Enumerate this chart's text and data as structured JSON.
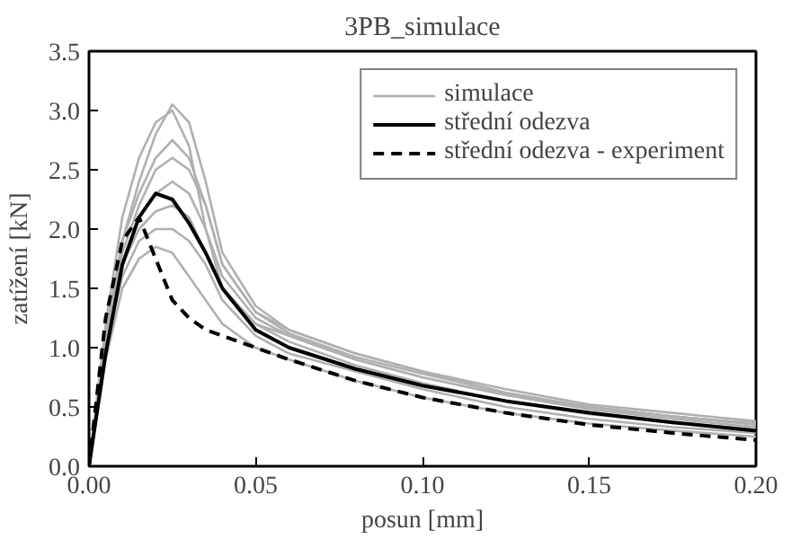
{
  "chart_data": {
    "type": "line",
    "title": "3PB_simulace",
    "xlabel": "posun [mm]",
    "ylabel": "zatížení [kN]",
    "x": [
      0,
      0.005,
      0.01,
      0.015,
      0.02,
      0.025,
      0.03,
      0.035,
      0.04,
      0.05,
      0.06,
      0.08,
      0.1,
      0.125,
      0.15,
      0.175,
      0.2
    ],
    "xlim": [
      0,
      0.2
    ],
    "xticks": [
      {
        "value": 0,
        "label": "0.00"
      },
      0.05,
      {
        "value": 0.1,
        "label": "0.10"
      },
      0.15,
      {
        "value": 0.2,
        "label": "0.20"
      }
    ],
    "ylim": [
      0,
      3.5
    ],
    "yticks": [
      {
        "value": 0,
        "label": "0.0"
      },
      0.5,
      {
        "value": 1,
        "label": "1.0"
      },
      1.5,
      {
        "value": 2,
        "label": "2.0"
      },
      2.5,
      {
        "value": 3,
        "label": "3.0"
      },
      3.5
    ],
    "grid": false,
    "legend": "top right",
    "line_style": "solid",
    "marker": "none",
    "series": [
      {
        "name": "simulace",
        "color": "#b0b0b0",
        "values": [
          0,
          1.2,
          2.1,
          2.6,
          2.9,
          3.0,
          2.7,
          2.0,
          1.5,
          1.2,
          1.1,
          0.9,
          0.75,
          0.6,
          0.5,
          0.42,
          0.35
        ]
      },
      {
        "color": "#b0b0b0",
        "values": [
          0,
          1.1,
          1.9,
          2.4,
          2.8,
          3.05,
          2.9,
          2.4,
          1.8,
          1.35,
          1.15,
          0.95,
          0.8,
          0.65,
          0.52,
          0.45,
          0.38
        ]
      },
      {
        "color": "#b0b0b0",
        "values": [
          0,
          1.0,
          1.7,
          2.1,
          2.3,
          2.4,
          2.3,
          2.0,
          1.6,
          1.25,
          1.1,
          0.9,
          0.75,
          0.6,
          0.48,
          0.4,
          0.33
        ]
      },
      {
        "color": "#b0b0b0",
        "values": [
          0,
          1.0,
          1.6,
          1.9,
          2.0,
          2.0,
          1.9,
          1.7,
          1.4,
          1.1,
          0.95,
          0.8,
          0.65,
          0.5,
          0.4,
          0.33,
          0.28
        ]
      },
      {
        "color": "#b0b0b0",
        "values": [
          0,
          0.9,
          1.5,
          1.75,
          1.85,
          1.8,
          1.6,
          1.4,
          1.2,
          1.0,
          0.9,
          0.72,
          0.58,
          0.45,
          0.36,
          0.3,
          0.25
        ]
      },
      {
        "color": "#b0b0b0",
        "values": [
          0,
          1.1,
          1.8,
          2.2,
          2.5,
          2.6,
          2.5,
          2.2,
          1.7,
          1.3,
          1.15,
          0.95,
          0.8,
          0.62,
          0.5,
          0.42,
          0.36
        ]
      },
      {
        "color": "#b0b0b0",
        "values": [
          0,
          1.0,
          1.7,
          2.0,
          2.15,
          2.2,
          2.1,
          1.8,
          1.5,
          1.2,
          1.05,
          0.85,
          0.7,
          0.55,
          0.44,
          0.37,
          0.31
        ]
      },
      {
        "color": "#b0b0b0",
        "values": [
          0,
          1.1,
          1.9,
          2.3,
          2.6,
          2.75,
          2.6,
          2.2,
          1.7,
          1.3,
          1.12,
          0.92,
          0.78,
          0.62,
          0.5,
          0.42,
          0.36
        ]
      },
      {
        "name": "střední odezva",
        "color": "#000000",
        "values": [
          0,
          0.95,
          1.7,
          2.1,
          2.3,
          2.25,
          2.05,
          1.8,
          1.5,
          1.15,
          1.0,
          0.82,
          0.68,
          0.55,
          0.45,
          0.37,
          0.3
        ]
      },
      {
        "name": "střední odezva - experiment",
        "color": "#000000",
        "line_style": "dashed",
        "values": [
          0,
          1.25,
          1.9,
          2.1,
          1.75,
          1.4,
          1.25,
          1.15,
          1.1,
          1.0,
          0.9,
          0.72,
          0.58,
          0.45,
          0.35,
          0.28,
          0.22
        ]
      }
    ]
  }
}
